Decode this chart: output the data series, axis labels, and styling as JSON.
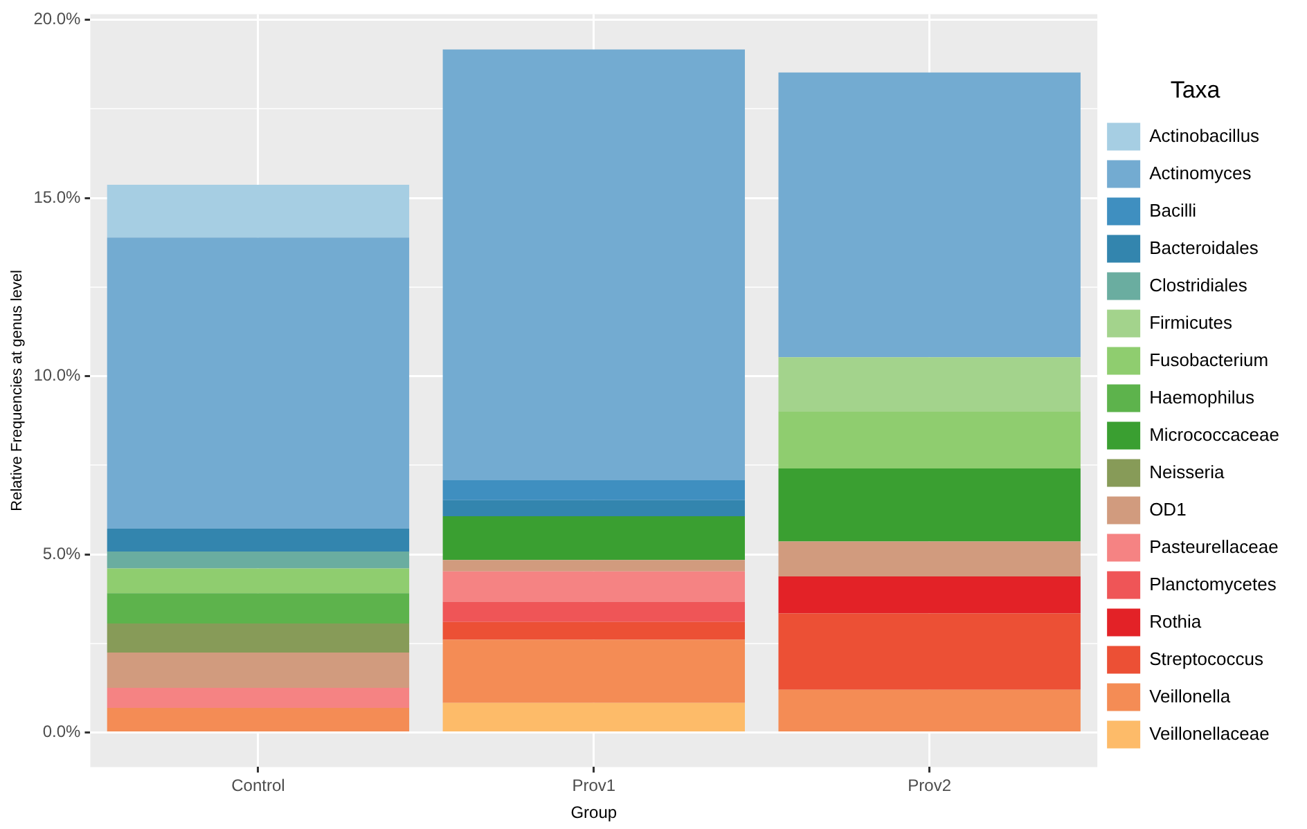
{
  "chart_data": {
    "type": "bar",
    "stacked": true,
    "xlabel": "Group",
    "ylabel": "Relative Frequencies at genus level",
    "legend_title": "Taxa",
    "legend": "right",
    "grid": true,
    "categories": [
      "Control",
      "Prov1",
      "Prov2"
    ],
    "ylim": [
      -0.97,
      20.16
    ],
    "yticks": [
      {
        "value": 0,
        "label": "0.0%"
      },
      {
        "value": 2.5,
        "label": null
      },
      {
        "value": 5,
        "label": "5.0%"
      },
      {
        "value": 7.5,
        "label": null
      },
      {
        "value": 10,
        "label": "10.0%"
      },
      {
        "value": 12.5,
        "label": null
      },
      {
        "value": 15,
        "label": "15.0%"
      },
      {
        "value": 17.5,
        "label": null
      },
      {
        "value": 20,
        "label": "20.0%"
      }
    ],
    "series": [
      {
        "name": "Veillonellaceae",
        "color": "#fdbb69",
        "values": [
          null,
          0.83,
          null
        ]
      },
      {
        "name": "Veillonella",
        "color": "#f48c55",
        "values": [
          0.69,
          1.77,
          1.2
        ]
      },
      {
        "name": "Streptococcus",
        "color": "#ec5035",
        "values": [
          null,
          0.5,
          2.14
        ]
      },
      {
        "name": "Rothia",
        "color": "#e32227",
        "values": [
          null,
          null,
          1.04
        ]
      },
      {
        "name": "Planctomycetes",
        "color": "#ef5557",
        "values": [
          null,
          0.57,
          null
        ]
      },
      {
        "name": "Pasteurellaceae",
        "color": "#f58383",
        "values": [
          0.56,
          0.85,
          null
        ]
      },
      {
        "name": "OD1",
        "color": "#d19b7e",
        "values": [
          0.99,
          0.32,
          0.98
        ]
      },
      {
        "name": "Neisseria",
        "color": "#879b58",
        "values": [
          0.82,
          null,
          null
        ]
      },
      {
        "name": "Micrococcaceae",
        "color": "#3a9f31",
        "values": [
          null,
          1.23,
          2.05
        ]
      },
      {
        "name": "Haemophilus",
        "color": "#5db34c",
        "values": [
          0.85,
          null,
          null
        ]
      },
      {
        "name": "Fusobacterium",
        "color": "#8fcd6f",
        "values": [
          0.69,
          null,
          1.59
        ]
      },
      {
        "name": "Firmicutes",
        "color": "#a3d38c",
        "values": [
          null,
          null,
          1.53
        ]
      },
      {
        "name": "Clostridiales",
        "color": "#6aada0",
        "values": [
          0.48,
          null,
          null
        ]
      },
      {
        "name": "Bacteroidales",
        "color": "#3385ae",
        "values": [
          0.64,
          0.45,
          null
        ]
      },
      {
        "name": "Bacilli",
        "color": "#3f8fc0",
        "values": [
          null,
          0.56,
          null
        ]
      },
      {
        "name": "Actinomyces",
        "color": "#73abd1",
        "values": [
          8.17,
          12.09,
          7.99
        ]
      },
      {
        "name": "Actinobacillus",
        "color": "#a6cee3",
        "values": [
          1.48,
          null,
          null
        ]
      }
    ]
  }
}
